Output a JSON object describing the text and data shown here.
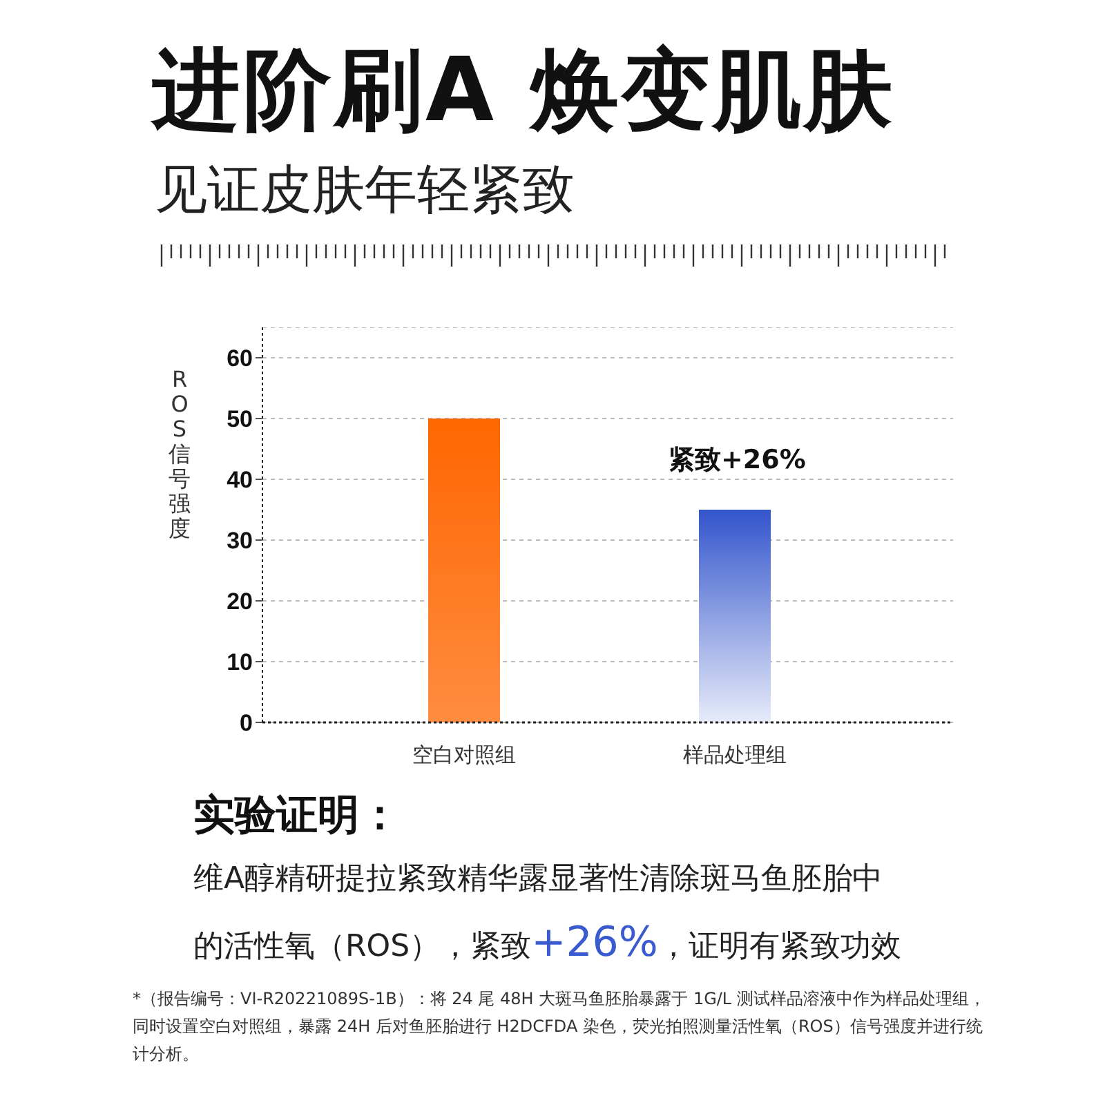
{
  "chart_data": {
    "type": "bar",
    "title": "进阶刷A 焕变肌肤",
    "subtitle": "见证皮肤年轻紧致",
    "ylabel": "ROS信号强度",
    "categories": [
      "空白对照组",
      "样品处理组"
    ],
    "values": [
      50,
      35
    ],
    "colors": [
      "#ff6600",
      "#3355cc"
    ],
    "ylim": [
      0,
      65
    ],
    "yticks": [
      0,
      10,
      20,
      30,
      40,
      50,
      60
    ],
    "grid": "y",
    "annotations": [
      "紧致+26%",
      "实验证明：",
      "维A醇精研提拉紧致精华露显著性清除斑马鱼胚胎中的活性氧（ROS），紧致+26%，证明有紧致功效",
      "*（报告编号：VI-R20221089S-1B）：将 24 尾 48H 大斑马鱼胚胎暴露于 1G/L 测试样品溶液中作为样品处理组，同时设置空白对照组，暴露 24H 后对鱼胚胎进行 H2DCFDA 染色，荧光拍照测量活性氧（ROS）信号强度并进行统计分析。"
    ]
  }
}
